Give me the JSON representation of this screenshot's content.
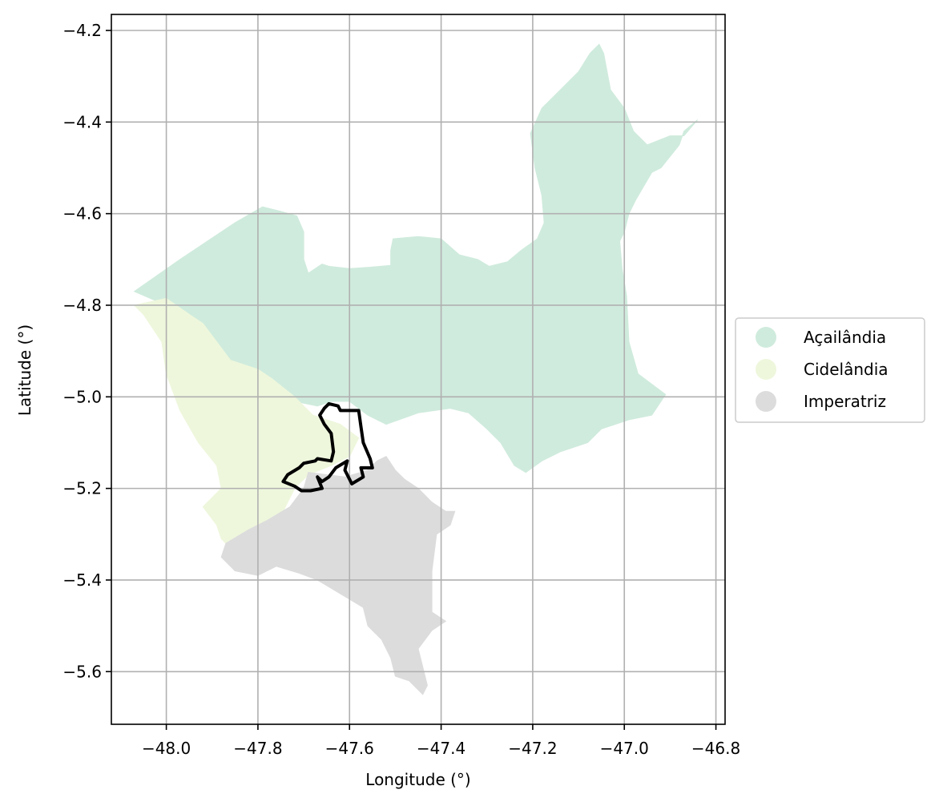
{
  "chart_data": {
    "type": "map",
    "xlabel": "Longitude (°)",
    "ylabel": "Latitude (°)",
    "xlim": [
      -48.12,
      -46.78
    ],
    "ylim": [
      -5.715,
      -4.165
    ],
    "grid": true,
    "legend_placement": "right-outside",
    "x_ticks": [
      "−48.0",
      "−47.8",
      "−47.6",
      "−47.4",
      "−47.2",
      "−47.0",
      "−46.8"
    ],
    "x_tick_values": [
      -48.0,
      -47.8,
      -47.6,
      -47.4,
      -47.2,
      -47.0,
      -46.8
    ],
    "y_ticks": [
      "−4.2",
      "−4.4",
      "−4.6",
      "−4.8",
      "−5.0",
      "−5.2",
      "−5.4",
      "−5.6"
    ],
    "y_tick_values": [
      -4.2,
      -4.4,
      -4.6,
      -4.8,
      -5.0,
      -5.2,
      -5.4,
      -5.6
    ],
    "regions": [
      {
        "name": "Açailândia",
        "color": "#cfebdd",
        "polygon": [
          [
            -48.07,
            -4.77
          ],
          [
            -47.97,
            -4.7
          ],
          [
            -47.85,
            -4.62
          ],
          [
            -47.79,
            -4.585
          ],
          [
            -47.75,
            -4.595
          ],
          [
            -47.715,
            -4.605
          ],
          [
            -47.7,
            -4.64
          ],
          [
            -47.7,
            -4.7
          ],
          [
            -47.69,
            -4.73
          ],
          [
            -47.66,
            -4.71
          ],
          [
            -47.645,
            -4.715
          ],
          [
            -47.6,
            -4.72
          ],
          [
            -47.555,
            -4.717
          ],
          [
            -47.51,
            -4.713
          ],
          [
            -47.51,
            -4.68
          ],
          [
            -47.505,
            -4.655
          ],
          [
            -47.45,
            -4.65
          ],
          [
            -47.4,
            -4.655
          ],
          [
            -47.36,
            -4.69
          ],
          [
            -47.32,
            -4.7
          ],
          [
            -47.295,
            -4.715
          ],
          [
            -47.255,
            -4.705
          ],
          [
            -47.225,
            -4.68
          ],
          [
            -47.19,
            -4.655
          ],
          [
            -47.175,
            -4.62
          ],
          [
            -47.18,
            -4.56
          ],
          [
            -47.195,
            -4.5
          ],
          [
            -47.205,
            -4.425
          ],
          [
            -47.18,
            -4.37
          ],
          [
            -47.14,
            -4.33
          ],
          [
            -47.1,
            -4.29
          ],
          [
            -47.075,
            -4.25
          ],
          [
            -47.055,
            -4.23
          ],
          [
            -47.045,
            -4.25
          ],
          [
            -47.03,
            -4.33
          ],
          [
            -47.0,
            -4.37
          ],
          [
            -46.98,
            -4.42
          ],
          [
            -46.95,
            -4.45
          ],
          [
            -46.9,
            -4.43
          ],
          [
            -46.87,
            -4.43
          ],
          [
            -46.84,
            -4.395
          ],
          [
            -46.87,
            -4.42
          ],
          [
            -46.88,
            -4.45
          ],
          [
            -46.92,
            -4.5
          ],
          [
            -46.94,
            -4.51
          ],
          [
            -46.975,
            -4.57
          ],
          [
            -46.99,
            -4.6
          ],
          [
            -47.0,
            -4.64
          ],
          [
            -47.01,
            -4.66
          ],
          [
            -47.005,
            -4.72
          ],
          [
            -46.995,
            -4.78
          ],
          [
            -46.99,
            -4.88
          ],
          [
            -46.97,
            -4.95
          ],
          [
            -46.91,
            -4.995
          ],
          [
            -46.94,
            -5.04
          ],
          [
            -46.99,
            -5.05
          ],
          [
            -47.05,
            -5.07
          ],
          [
            -47.08,
            -5.1
          ],
          [
            -47.14,
            -5.12
          ],
          [
            -47.18,
            -5.14
          ],
          [
            -47.215,
            -5.165
          ],
          [
            -47.24,
            -5.15
          ],
          [
            -47.27,
            -5.1
          ],
          [
            -47.3,
            -5.07
          ],
          [
            -47.34,
            -5.035
          ],
          [
            -47.38,
            -5.025
          ],
          [
            -47.45,
            -5.035
          ],
          [
            -47.52,
            -5.06
          ],
          [
            -47.56,
            -5.04
          ],
          [
            -47.6,
            -5.01
          ],
          [
            -47.64,
            -5.01
          ],
          [
            -47.67,
            -5.02
          ],
          [
            -47.72,
            -5.01
          ],
          [
            -47.77,
            -4.96
          ],
          [
            -47.8,
            -4.94
          ],
          [
            -47.86,
            -4.92
          ],
          [
            -47.92,
            -4.84
          ],
          [
            -48.0,
            -4.8
          ]
        ]
      },
      {
        "name": "Cidelândia",
        "color": "#eef7dc",
        "polygon": [
          [
            -48.07,
            -4.8
          ],
          [
            -48.0,
            -4.785
          ],
          [
            -47.95,
            -4.82
          ],
          [
            -47.92,
            -4.84
          ],
          [
            -47.86,
            -4.92
          ],
          [
            -47.8,
            -4.94
          ],
          [
            -47.77,
            -4.96
          ],
          [
            -47.72,
            -5.0
          ],
          [
            -47.68,
            -5.04
          ],
          [
            -47.62,
            -5.06
          ],
          [
            -47.58,
            -5.09
          ],
          [
            -47.6,
            -5.13
          ],
          [
            -47.64,
            -5.15
          ],
          [
            -47.69,
            -5.17
          ],
          [
            -47.72,
            -5.2
          ],
          [
            -47.745,
            -5.25
          ],
          [
            -47.8,
            -5.28
          ],
          [
            -47.83,
            -5.3
          ],
          [
            -47.86,
            -5.33
          ],
          [
            -47.88,
            -5.31
          ],
          [
            -47.89,
            -5.28
          ],
          [
            -47.92,
            -5.24
          ],
          [
            -47.88,
            -5.2
          ],
          [
            -47.89,
            -5.15
          ],
          [
            -47.93,
            -5.1
          ],
          [
            -47.97,
            -5.03
          ],
          [
            -48.0,
            -4.95
          ],
          [
            -48.01,
            -4.88
          ],
          [
            -48.05,
            -4.82
          ]
        ]
      },
      {
        "name": "Imperatriz",
        "color": "#dcdcdc",
        "polygon": [
          [
            -47.87,
            -5.32
          ],
          [
            -47.82,
            -5.29
          ],
          [
            -47.78,
            -5.27
          ],
          [
            -47.73,
            -5.24
          ],
          [
            -47.7,
            -5.2
          ],
          [
            -47.69,
            -5.165
          ],
          [
            -47.65,
            -5.17
          ],
          [
            -47.61,
            -5.175
          ],
          [
            -47.56,
            -5.16
          ],
          [
            -47.54,
            -5.14
          ],
          [
            -47.52,
            -5.13
          ],
          [
            -47.5,
            -5.16
          ],
          [
            -47.48,
            -5.18
          ],
          [
            -47.45,
            -5.2
          ],
          [
            -47.42,
            -5.23
          ],
          [
            -47.39,
            -5.25
          ],
          [
            -47.37,
            -5.25
          ],
          [
            -47.38,
            -5.28
          ],
          [
            -47.41,
            -5.3
          ],
          [
            -47.42,
            -5.38
          ],
          [
            -47.42,
            -5.47
          ],
          [
            -47.39,
            -5.49
          ],
          [
            -47.42,
            -5.51
          ],
          [
            -47.45,
            -5.55
          ],
          [
            -47.44,
            -5.59
          ],
          [
            -47.43,
            -5.63
          ],
          [
            -47.44,
            -5.65
          ],
          [
            -47.47,
            -5.62
          ],
          [
            -47.5,
            -5.61
          ],
          [
            -47.51,
            -5.57
          ],
          [
            -47.53,
            -5.53
          ],
          [
            -47.56,
            -5.5
          ],
          [
            -47.57,
            -5.46
          ],
          [
            -47.62,
            -5.43
          ],
          [
            -47.67,
            -5.4
          ],
          [
            -47.71,
            -5.385
          ],
          [
            -47.76,
            -5.37
          ],
          [
            -47.8,
            -5.39
          ],
          [
            -47.85,
            -5.38
          ],
          [
            -47.88,
            -5.35
          ]
        ]
      }
    ],
    "highlight_outline": {
      "name": "",
      "color": "#000000",
      "polygon": [
        [
          -47.645,
          -5.015
        ],
        [
          -47.625,
          -5.02
        ],
        [
          -47.62,
          -5.03
        ],
        [
          -47.58,
          -5.03
        ],
        [
          -47.575,
          -5.065
        ],
        [
          -47.57,
          -5.1
        ],
        [
          -47.555,
          -5.135
        ],
        [
          -47.55,
          -5.155
        ],
        [
          -47.575,
          -5.155
        ],
        [
          -47.57,
          -5.175
        ],
        [
          -47.595,
          -5.19
        ],
        [
          -47.6,
          -5.18
        ],
        [
          -47.61,
          -5.16
        ],
        [
          -47.605,
          -5.14
        ],
        [
          -47.63,
          -5.155
        ],
        [
          -47.645,
          -5.175
        ],
        [
          -47.66,
          -5.185
        ],
        [
          -47.67,
          -5.175
        ],
        [
          -47.66,
          -5.2
        ],
        [
          -47.685,
          -5.205
        ],
        [
          -47.705,
          -5.205
        ],
        [
          -47.72,
          -5.195
        ],
        [
          -47.745,
          -5.185
        ],
        [
          -47.735,
          -5.17
        ],
        [
          -47.71,
          -5.155
        ],
        [
          -47.7,
          -5.145
        ],
        [
          -47.675,
          -5.14
        ],
        [
          -47.67,
          -5.135
        ],
        [
          -47.64,
          -5.14
        ],
        [
          -47.635,
          -5.12
        ],
        [
          -47.64,
          -5.08
        ],
        [
          -47.655,
          -5.06
        ],
        [
          -47.665,
          -5.04
        ],
        [
          -47.655,
          -5.025
        ]
      ]
    },
    "legend": [
      "Açailândia",
      "Cidelândia",
      "Imperatriz"
    ]
  }
}
